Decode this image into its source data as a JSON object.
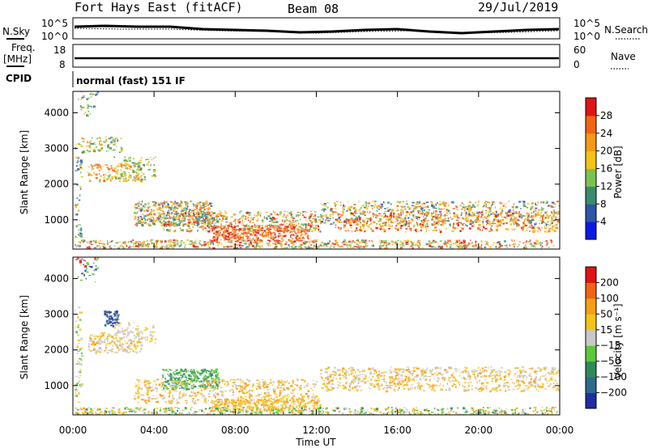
{
  "header": {
    "station": "Fort Hays East (fitACF)",
    "beam": "Beam 08",
    "date": "29/Jul/2019"
  },
  "top_panel": {
    "nsky_label": "N.Sky",
    "nsearch_label": "N.Search",
    "left_ticks": [
      "10^5",
      "10^0"
    ],
    "right_ticks": [
      "10^5",
      "10^0"
    ]
  },
  "freq_panel": {
    "freq_label_1": "Freq.",
    "freq_label_2": "[MHz]",
    "nave_label": "Nave",
    "left_ticks": [
      "18",
      "8"
    ],
    "right_ticks": [
      "60",
      "0"
    ]
  },
  "cpid": {
    "label": "CPID",
    "text": "normal (fast) 151 IF"
  },
  "chart_data": [
    {
      "type": "heatmap",
      "title": "",
      "xlabel": "Time UT",
      "ylabel": "Slant Range [km]",
      "x_ticks": [
        "00:00",
        "04:00",
        "08:00",
        "12:00",
        "16:00",
        "20:00",
        "00:00"
      ],
      "y_ticks": [
        1000,
        2000,
        3000,
        4000
      ],
      "ylim": [
        180,
        4600
      ],
      "colorbar": {
        "label": "Power [dB]",
        "ticks": [
          "4",
          "8",
          "12",
          "16",
          "20",
          "24",
          "28"
        ],
        "colors": [
          "#0a19e6",
          "#2d55a8",
          "#3a8c6e",
          "#7cc250",
          "#f2c418",
          "#f59a16",
          "#f06414",
          "#e01414"
        ]
      }
    },
    {
      "type": "heatmap",
      "title": "",
      "xlabel": "Time UT",
      "ylabel": "Slant Range [km]",
      "x_ticks": [
        "00:00",
        "04:00",
        "08:00",
        "12:00",
        "16:00",
        "20:00",
        "00:00"
      ],
      "y_ticks": [
        1000,
        2000,
        3000,
        4000
      ],
      "ylim": [
        180,
        4600
      ],
      "colorbar": {
        "label": "Velocity [m s⁻¹]",
        "ticks": [
          "200",
          "100",
          "50",
          "15",
          "−15",
          "−50",
          "−100",
          "−200"
        ],
        "colors": [
          "#1e2ea0",
          "#2e6a8a",
          "#2e8a5a",
          "#5cc83c",
          "#c8c8c8",
          "#f2c418",
          "#f5a014",
          "#f06414",
          "#e01414"
        ]
      }
    }
  ]
}
